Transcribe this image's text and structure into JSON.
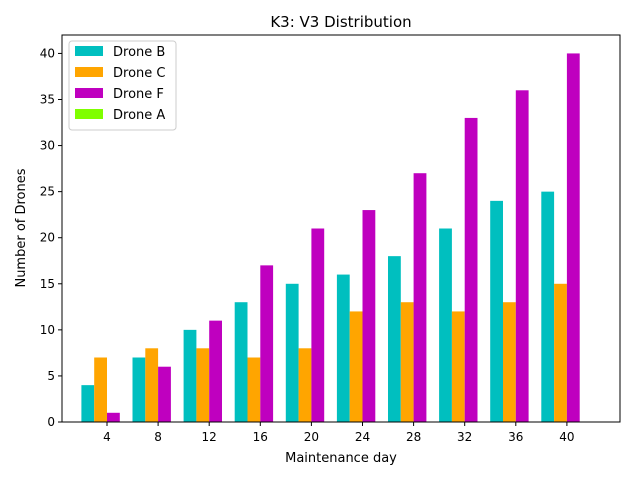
{
  "chart_data": {
    "type": "bar",
    "title": "K3: V3 Distribution",
    "xlabel": "Maintenance day",
    "ylabel": "Number of Drones",
    "categories": [
      "4",
      "8",
      "12",
      "16",
      "20",
      "24",
      "28",
      "32",
      "36",
      "40"
    ],
    "ylim": [
      0,
      42
    ],
    "yticks": [
      0,
      5,
      10,
      15,
      20,
      25,
      30,
      35,
      40
    ],
    "grid": false,
    "legend_position": "top-left",
    "series": [
      {
        "name": "Drone B",
        "color": "#00BFBF",
        "values": [
          4,
          7,
          10,
          13,
          15,
          16,
          18,
          21,
          24,
          25
        ]
      },
      {
        "name": "Drone C",
        "color": "#FFA500",
        "values": [
          7,
          8,
          8,
          7,
          8,
          12,
          13,
          12,
          13,
          15
        ]
      },
      {
        "name": "Drone F",
        "color": "#BF00BF",
        "values": [
          1,
          6,
          11,
          17,
          21,
          23,
          27,
          33,
          36,
          40
        ]
      },
      {
        "name": "Drone A",
        "color": "#7FFF00",
        "values": [
          0,
          0,
          0,
          0,
          0,
          0,
          0,
          0,
          0,
          0
        ]
      }
    ]
  }
}
